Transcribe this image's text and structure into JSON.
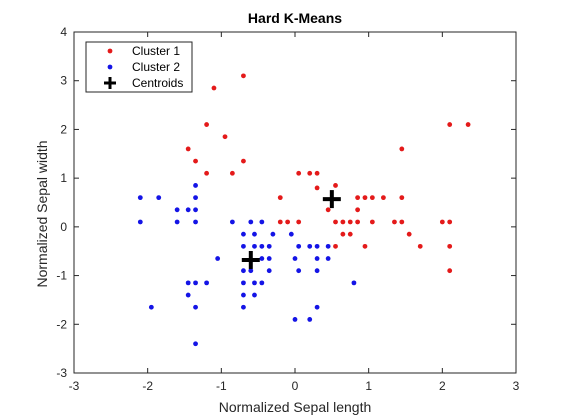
{
  "chart_data": {
    "type": "scatter",
    "title": "Hard K-Means",
    "xlabel": "Normalized Sepal length",
    "ylabel": "Normalized Sepal width",
    "xlim": [
      -3,
      3
    ],
    "ylim": [
      -3,
      4
    ],
    "xticks": [
      -3,
      -2,
      -1,
      0,
      1,
      2,
      3
    ],
    "yticks": [
      -3,
      -2,
      -1,
      0,
      1,
      2,
      3,
      4
    ],
    "grid": false,
    "legend_position": "top-left",
    "series": [
      {
        "name": "Cluster 1",
        "color": "#e41a1a",
        "marker": "dot",
        "points": [
          [
            -0.7,
            3.1
          ],
          [
            -1.1,
            2.85
          ],
          [
            -0.95,
            1.85
          ],
          [
            -1.2,
            2.1
          ],
          [
            -1.45,
            1.6
          ],
          [
            -1.35,
            1.35
          ],
          [
            -1.2,
            1.1
          ],
          [
            -0.85,
            1.1
          ],
          [
            -0.7,
            1.35
          ],
          [
            -0.2,
            0.6
          ],
          [
            0.05,
            1.1
          ],
          [
            0.2,
            1.1
          ],
          [
            0.3,
            1.1
          ],
          [
            0.3,
            0.8
          ],
          [
            0.55,
            0.85
          ],
          [
            0.45,
            0.35
          ],
          [
            -0.2,
            0.1
          ],
          [
            -0.1,
            0.1
          ],
          [
            0.05,
            0.1
          ],
          [
            0.55,
            0.1
          ],
          [
            0.65,
            0.1
          ],
          [
            0.75,
            0.1
          ],
          [
            0.85,
            0.1
          ],
          [
            0.65,
            -0.15
          ],
          [
            0.75,
            -0.15
          ],
          [
            0.55,
            -0.4
          ],
          [
            0.95,
            -0.4
          ],
          [
            0.85,
            0.35
          ],
          [
            0.85,
            0.6
          ],
          [
            0.95,
            0.6
          ],
          [
            1.05,
            0.6
          ],
          [
            1.2,
            0.6
          ],
          [
            1.45,
            0.6
          ],
          [
            1.05,
            0.1
          ],
          [
            1.35,
            0.1
          ],
          [
            1.45,
            0.1
          ],
          [
            1.55,
            -0.15
          ],
          [
            1.7,
            -0.4
          ],
          [
            1.45,
            1.6
          ],
          [
            2.0,
            0.1
          ],
          [
            2.1,
            0.1
          ],
          [
            2.1,
            -0.4
          ],
          [
            2.1,
            -0.9
          ],
          [
            2.1,
            2.1
          ],
          [
            2.35,
            2.1
          ]
        ]
      },
      {
        "name": "Cluster 2",
        "color": "#1414e6",
        "marker": "dot",
        "points": [
          [
            -2.1,
            0.6
          ],
          [
            -1.85,
            0.6
          ],
          [
            -2.1,
            0.1
          ],
          [
            -1.6,
            0.35
          ],
          [
            -1.45,
            0.35
          ],
          [
            -1.35,
            0.85
          ],
          [
            -1.35,
            0.6
          ],
          [
            -1.35,
            0.35
          ],
          [
            -1.6,
            0.1
          ],
          [
            -1.35,
            0.1
          ],
          [
            -0.85,
            0.1
          ],
          [
            -0.6,
            0.1
          ],
          [
            -0.45,
            0.1
          ],
          [
            -0.7,
            -0.15
          ],
          [
            -0.55,
            -0.15
          ],
          [
            -0.45,
            -0.4
          ],
          [
            -0.55,
            -0.4
          ],
          [
            -0.7,
            -0.4
          ],
          [
            -0.35,
            -0.4
          ],
          [
            -0.3,
            -0.15
          ],
          [
            -0.05,
            -0.15
          ],
          [
            0.05,
            -0.4
          ],
          [
            0.2,
            -0.4
          ],
          [
            0.3,
            -0.4
          ],
          [
            0.45,
            -0.4
          ],
          [
            0.3,
            -0.65
          ],
          [
            0.45,
            -0.65
          ],
          [
            0.0,
            -0.65
          ],
          [
            0.05,
            -0.9
          ],
          [
            0.3,
            -0.9
          ],
          [
            -0.35,
            -0.65
          ],
          [
            -0.45,
            -0.65
          ],
          [
            -0.35,
            -0.9
          ],
          [
            -0.6,
            -0.9
          ],
          [
            -0.7,
            -0.9
          ],
          [
            -0.55,
            -1.15
          ],
          [
            -0.45,
            -1.15
          ],
          [
            -0.7,
            -1.15
          ],
          [
            -0.7,
            -1.4
          ],
          [
            -0.7,
            -1.65
          ],
          [
            -0.55,
            -1.4
          ],
          [
            -1.05,
            -0.65
          ],
          [
            -1.2,
            -1.15
          ],
          [
            -1.45,
            -1.15
          ],
          [
            -1.35,
            -1.15
          ],
          [
            -1.45,
            -1.4
          ],
          [
            -1.35,
            -1.65
          ],
          [
            -1.35,
            -2.4
          ],
          [
            -1.95,
            -1.65
          ],
          [
            0.3,
            -1.65
          ],
          [
            0.2,
            -1.9
          ],
          [
            0.0,
            -1.9
          ],
          [
            0.8,
            -1.15
          ]
        ]
      },
      {
        "name": "Centroids",
        "color": "#000000",
        "marker": "plus",
        "points": [
          [
            -0.6,
            -0.68
          ],
          [
            0.5,
            0.57
          ]
        ]
      }
    ]
  }
}
